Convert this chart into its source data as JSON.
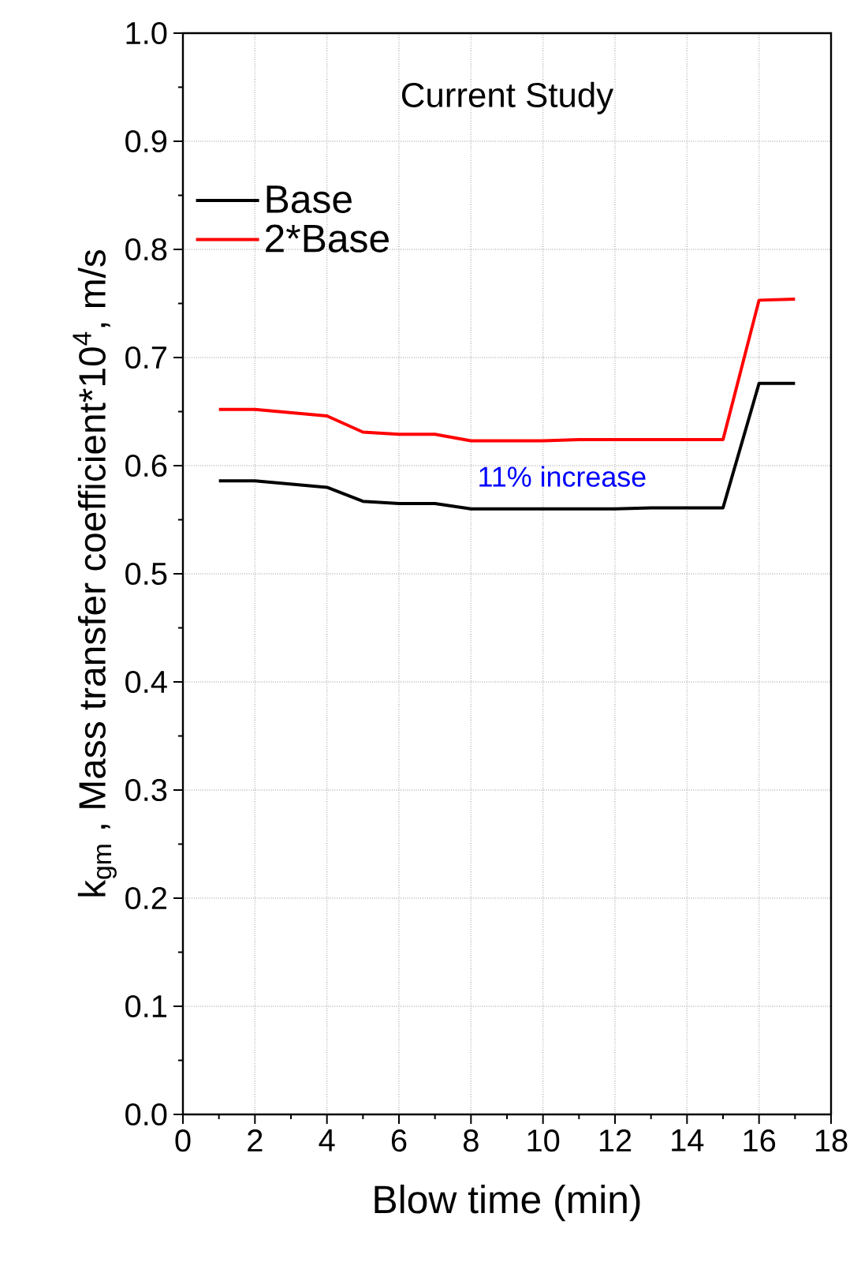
{
  "chart_data": {
    "type": "line",
    "xlabel": "Blow time (min)",
    "ylabel": "k$_{gm}$ , Mass transfer coefficient*10$^{4}$, m/s",
    "x": [
      1,
      2,
      3,
      4,
      5,
      6,
      7,
      8,
      9,
      10,
      11,
      12,
      13,
      14,
      15,
      16,
      17
    ],
    "series": [
      {
        "name": "Base",
        "color": "#000000",
        "values": [
          0.586,
          0.586,
          0.583,
          0.58,
          0.567,
          0.565,
          0.565,
          0.56,
          0.56,
          0.56,
          0.56,
          0.56,
          0.561,
          0.561,
          0.561,
          0.676,
          0.676
        ]
      },
      {
        "name": "2*Base",
        "color": "#ff0000",
        "values": [
          0.652,
          0.652,
          0.649,
          0.646,
          0.631,
          0.629,
          0.629,
          0.623,
          0.623,
          0.623,
          0.624,
          0.624,
          0.624,
          0.624,
          0.624,
          0.753,
          0.754
        ]
      }
    ],
    "xlim": [
      0,
      18
    ],
    "xticks": [
      0,
      2,
      4,
      6,
      8,
      10,
      12,
      14,
      16,
      18
    ],
    "ylim": [
      0.0,
      1.0
    ],
    "yticks": [
      {
        "value": 0.0,
        "label": "0.0"
      },
      0.1,
      0.2,
      0.3,
      0.4,
      0.5,
      0.6,
      0.7,
      0.8,
      0.9,
      {
        "value": 1.0,
        "label": "1.0"
      }
    ],
    "grid": true,
    "legend": "top left",
    "marker": "none",
    "line_style": "solid",
    "annotations": [
      "Current Study",
      "11% increase"
    ]
  }
}
